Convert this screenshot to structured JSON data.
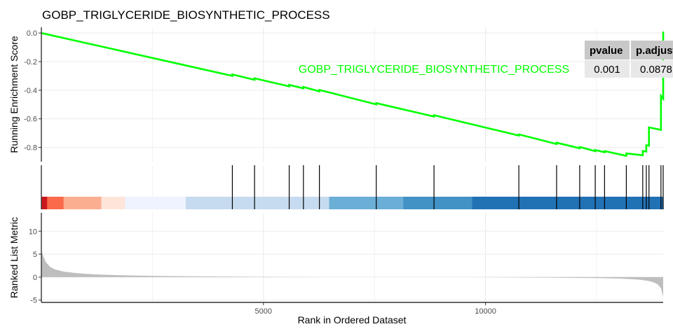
{
  "chart_data": {
    "type": "line",
    "title": "GOBP_TRIGLYCERIDE_BIOSYNTHETIC_PROCESS",
    "geneset_label": "GOBP_TRIGLYCERIDE_BIOSYNTHETIC_PROCESS",
    "xlabel": "Rank in Ordered Dataset",
    "xlim": [
      0,
      14000
    ],
    "x_ticks": [
      5000,
      10000
    ],
    "x_tick_labels": [
      "5000",
      "10000"
    ],
    "line_color": "#00ff00",
    "grid": true,
    "panels": [
      {
        "name": "running-score",
        "ylabel": "Running Enrichment Score",
        "ylim": [
          -0.9,
          0.04
        ],
        "y_ticks": [
          0.0,
          -0.2,
          -0.4,
          -0.6,
          -0.8
        ],
        "y_tick_labels": [
          "0.0",
          "-0.2",
          "-0.4",
          "-0.6",
          "-0.8"
        ],
        "x": [
          0,
          4300,
          4300,
          4800,
          4800,
          5580,
          5580,
          5900,
          5900,
          6260,
          6260,
          7540,
          7540,
          8840,
          8840,
          10750,
          10750,
          11600,
          11600,
          12120,
          12120,
          12470,
          12470,
          12680,
          12680,
          13170,
          13170,
          13540,
          13540,
          13620,
          13620,
          13680,
          13680,
          13950,
          13950,
          14000,
          14000
        ],
        "y": [
          0.0,
          -0.3,
          -0.29,
          -0.327,
          -0.317,
          -0.373,
          -0.363,
          -0.387,
          -0.377,
          -0.408,
          -0.398,
          -0.499,
          -0.49,
          -0.584,
          -0.575,
          -0.717,
          -0.709,
          -0.776,
          -0.767,
          -0.806,
          -0.797,
          -0.826,
          -0.818,
          -0.834,
          -0.826,
          -0.859,
          -0.842,
          -0.855,
          -0.825,
          -0.829,
          -0.785,
          -0.788,
          -0.66,
          -0.677,
          -0.44,
          -0.46,
          0.01
        ]
      },
      {
        "name": "gene-hits",
        "hits": [
          4300,
          4800,
          5580,
          5900,
          6260,
          7540,
          8840,
          10750,
          11600,
          12120,
          12470,
          12680,
          13170,
          13540,
          13620,
          13680,
          13950,
          14000
        ],
        "color_bands": [
          {
            "from": 0,
            "to": 130,
            "color": "#cb181d"
          },
          {
            "from": 130,
            "to": 500,
            "color": "#fb6a4a"
          },
          {
            "from": 500,
            "to": 1350,
            "color": "#fcae91"
          },
          {
            "from": 1350,
            "to": 1880,
            "color": "#fee5d9"
          },
          {
            "from": 1880,
            "to": 3250,
            "color": "#eff3ff"
          },
          {
            "from": 3250,
            "to": 6480,
            "color": "#c6dbef"
          },
          {
            "from": 6480,
            "to": 8150,
            "color": "#6baed6"
          },
          {
            "from": 8150,
            "to": 9700,
            "color": "#4292c6"
          },
          {
            "from": 9700,
            "to": 14000,
            "color": "#2171b5"
          }
        ]
      },
      {
        "name": "ranked-metric",
        "ylabel": "Ranked List Metric",
        "ylim": [
          -5.5,
          14
        ],
        "y_ticks": [
          10,
          5,
          0,
          -5
        ],
        "y_tick_labels": [
          "10",
          "5",
          "0",
          "-5"
        ],
        "fill_color": "#bebebe",
        "x": [
          0,
          50,
          100,
          200,
          300,
          500,
          800,
          1200,
          1800,
          2500,
          3500,
          4500,
          5500,
          6000,
          6400,
          7500,
          8500,
          9000,
          9700,
          10500,
          11500,
          12500,
          13000,
          13300,
          13500,
          13700,
          13800,
          13880,
          13950,
          14000
        ],
        "y": [
          5.8,
          4.4,
          3.3,
          2.2,
          1.7,
          1.2,
          0.85,
          0.6,
          0.4,
          0.28,
          0.17,
          0.1,
          0.05,
          0.02,
          0.0,
          0.0,
          0.0,
          0.0,
          0.0,
          -0.05,
          -0.1,
          -0.2,
          -0.3,
          -0.45,
          -0.6,
          -0.9,
          -1.2,
          -1.6,
          -2.4,
          -4.3
        ]
      }
    ],
    "table": {
      "headers": [
        "pvalue",
        "p.adjust"
      ],
      "values": [
        "0.001",
        "0.0878"
      ]
    }
  }
}
